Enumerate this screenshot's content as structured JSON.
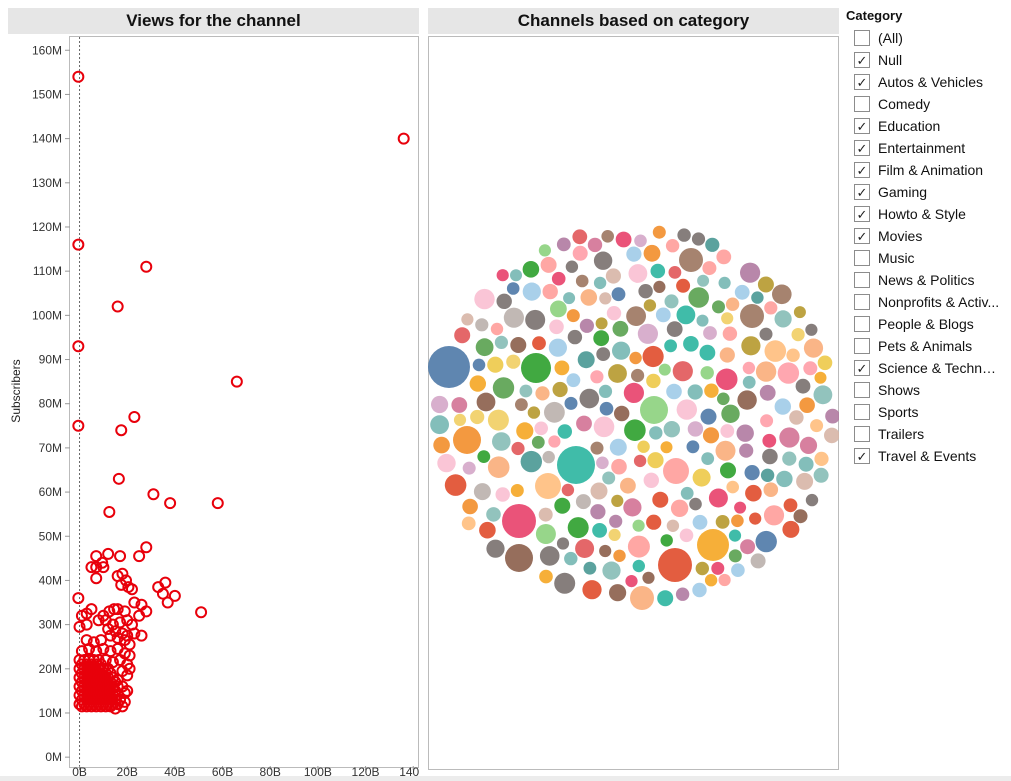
{
  "panels": {
    "scatter_title": "Views for the channel",
    "bubble_title": "Channels based on category"
  },
  "legend": {
    "title": "Category",
    "items": [
      {
        "label": "(All)",
        "checked": false
      },
      {
        "label": "Null",
        "checked": true
      },
      {
        "label": "Autos & Vehicles",
        "checked": true
      },
      {
        "label": "Comedy",
        "checked": false
      },
      {
        "label": "Education",
        "checked": true
      },
      {
        "label": "Entertainment",
        "checked": true
      },
      {
        "label": "Film & Animation",
        "checked": true
      },
      {
        "label": "Gaming",
        "checked": true
      },
      {
        "label": "Howto & Style",
        "checked": true
      },
      {
        "label": "Movies",
        "checked": true
      },
      {
        "label": "Music",
        "checked": false
      },
      {
        "label": "News & Politics",
        "checked": false
      },
      {
        "label": "Nonprofits & Activ...",
        "checked": false
      },
      {
        "label": "People & Blogs",
        "checked": false
      },
      {
        "label": "Pets & Animals",
        "checked": false
      },
      {
        "label": "Science & Techno...",
        "checked": true
      },
      {
        "label": "Shows",
        "checked": false
      },
      {
        "label": "Sports",
        "checked": false
      },
      {
        "label": "Trailers",
        "checked": false
      },
      {
        "label": "Travel & Events",
        "checked": true
      }
    ]
  },
  "chart_data": [
    {
      "type": "scatter",
      "title": "Views for the channel",
      "ylabel": "Subscribers",
      "xlabel": "",
      "x_unit": "B views",
      "y_unit": "M subscribers",
      "xlim": [
        -4,
        142
      ],
      "ylim": [
        -2,
        163
      ],
      "x_ticks": [
        "0B",
        "20B",
        "40B",
        "60B",
        "80B",
        "100B",
        "120B",
        "140B"
      ],
      "x_tick_values": [
        0,
        20,
        40,
        60,
        80,
        100,
        120,
        140
      ],
      "y_ticks": [
        "0M",
        "10M",
        "20M",
        "30M",
        "40M",
        "50M",
        "60M",
        "70M",
        "80M",
        "90M",
        "100M",
        "110M",
        "120M",
        "130M",
        "140M",
        "150M",
        "160M"
      ],
      "y_tick_values": [
        0,
        10,
        20,
        30,
        40,
        50,
        60,
        70,
        80,
        90,
        100,
        110,
        120,
        130,
        140,
        150,
        160
      ],
      "marker_color": "#e8000b",
      "reference_line_x": 0,
      "points": [
        [
          -0.5,
          154
        ],
        [
          136,
          140
        ],
        [
          -0.5,
          116
        ],
        [
          28,
          111
        ],
        [
          16,
          102
        ],
        [
          -0.5,
          93
        ],
        [
          66,
          85
        ],
        [
          23,
          77
        ],
        [
          -0.5,
          75
        ],
        [
          17.5,
          74
        ],
        [
          16.5,
          63
        ],
        [
          31,
          59.5
        ],
        [
          38,
          57.5
        ],
        [
          58,
          57.5
        ],
        [
          12.5,
          55.5
        ],
        [
          51,
          32.8
        ],
        [
          -0.5,
          36
        ],
        [
          28,
          47.5
        ],
        [
          25,
          45.5
        ],
        [
          7,
          45.5
        ],
        [
          9.5,
          44
        ],
        [
          12,
          46
        ],
        [
          17,
          45.5
        ],
        [
          5,
          43
        ],
        [
          7,
          43
        ],
        [
          10,
          43
        ],
        [
          16,
          41
        ],
        [
          18,
          41.5
        ],
        [
          19.5,
          40
        ],
        [
          7,
          40.5
        ],
        [
          17.5,
          39
        ],
        [
          20.5,
          38.5
        ],
        [
          22,
          38
        ],
        [
          33,
          38.5
        ],
        [
          36,
          39.5
        ],
        [
          35,
          37
        ],
        [
          37,
          35
        ],
        [
          40,
          36.5
        ],
        [
          23,
          35
        ],
        [
          26,
          34.5
        ],
        [
          28,
          33
        ],
        [
          14.5,
          33.5
        ],
        [
          16,
          33.5
        ],
        [
          12.5,
          33
        ],
        [
          10,
          32
        ],
        [
          19,
          33
        ],
        [
          5,
          33.5
        ],
        [
          3,
          32.5
        ],
        [
          1,
          32
        ],
        [
          0,
          29.5
        ],
        [
          3,
          30
        ],
        [
          8,
          31
        ],
        [
          11,
          31
        ],
        [
          14,
          30
        ],
        [
          17,
          30.5
        ],
        [
          20,
          31
        ],
        [
          22,
          30
        ],
        [
          25,
          32
        ],
        [
          12,
          29
        ],
        [
          15,
          28.5
        ],
        [
          18,
          28
        ],
        [
          20,
          27.5
        ],
        [
          23,
          28
        ],
        [
          26,
          27.5
        ],
        [
          13,
          27.5
        ],
        [
          16,
          27
        ],
        [
          19,
          26.5
        ],
        [
          21,
          25.5
        ],
        [
          9,
          26.5
        ],
        [
          6,
          26
        ],
        [
          3,
          26.5
        ],
        [
          1,
          24
        ],
        [
          4,
          24.5
        ],
        [
          7,
          24
        ],
        [
          10,
          24.5
        ],
        [
          13,
          24
        ],
        [
          16,
          24.5
        ],
        [
          19,
          23.5
        ],
        [
          21,
          23
        ],
        [
          11,
          22
        ],
        [
          14,
          21.5
        ],
        [
          17,
          22
        ],
        [
          20,
          21
        ],
        [
          21,
          20
        ],
        [
          18,
          19.5
        ],
        [
          20,
          18.5
        ],
        [
          16,
          17.5
        ],
        [
          18,
          16
        ],
        [
          19,
          14.5
        ],
        [
          17,
          13
        ],
        [
          18,
          11.5
        ],
        [
          15,
          11
        ],
        [
          13,
          11.5
        ],
        [
          19,
          12.5
        ],
        [
          20,
          15
        ],
        [
          0,
          22
        ],
        [
          0,
          20
        ],
        [
          0,
          18
        ],
        [
          0,
          16
        ],
        [
          0,
          14
        ],
        [
          0,
          12
        ],
        [
          1,
          21
        ],
        [
          1,
          19
        ],
        [
          1,
          17
        ],
        [
          1,
          15
        ],
        [
          1,
          13
        ],
        [
          1,
          11.5
        ],
        [
          2,
          22
        ],
        [
          2,
          20
        ],
        [
          2,
          18
        ],
        [
          2,
          16
        ],
        [
          2,
          14
        ],
        [
          2,
          12
        ],
        [
          3,
          21
        ],
        [
          3,
          19
        ],
        [
          3,
          17
        ],
        [
          3,
          15
        ],
        [
          3,
          13
        ],
        [
          3,
          11.5
        ],
        [
          4,
          22
        ],
        [
          4,
          20
        ],
        [
          4,
          18
        ],
        [
          4,
          16
        ],
        [
          4,
          14
        ],
        [
          4,
          12
        ],
        [
          5,
          21
        ],
        [
          5,
          19
        ],
        [
          5,
          17
        ],
        [
          5,
          15
        ],
        [
          5,
          13
        ],
        [
          5,
          11.5
        ],
        [
          6,
          22
        ],
        [
          6,
          20
        ],
        [
          6,
          18
        ],
        [
          6,
          16
        ],
        [
          6,
          14
        ],
        [
          6,
          12
        ],
        [
          7,
          21
        ],
        [
          7,
          19
        ],
        [
          7,
          17
        ],
        [
          7,
          15
        ],
        [
          7,
          13
        ],
        [
          7,
          11.5
        ],
        [
          8,
          22
        ],
        [
          8,
          20
        ],
        [
          8,
          18
        ],
        [
          8,
          16
        ],
        [
          8,
          14
        ],
        [
          8,
          12
        ],
        [
          9,
          21
        ],
        [
          9,
          19
        ],
        [
          9,
          17
        ],
        [
          9,
          15
        ],
        [
          9,
          13
        ],
        [
          9,
          11.5
        ],
        [
          10,
          20
        ],
        [
          10,
          18
        ],
        [
          10,
          16
        ],
        [
          10,
          14
        ],
        [
          10,
          12
        ],
        [
          11,
          19
        ],
        [
          11,
          17
        ],
        [
          11,
          15
        ],
        [
          11,
          13
        ],
        [
          11,
          11.5
        ],
        [
          12,
          20
        ],
        [
          12,
          18
        ],
        [
          12,
          16
        ],
        [
          12,
          14
        ],
        [
          12,
          12
        ],
        [
          13,
          19
        ],
        [
          13,
          17
        ],
        [
          13,
          15
        ],
        [
          13,
          13
        ],
        [
          14,
          18
        ],
        [
          14,
          16
        ],
        [
          14,
          14
        ],
        [
          14,
          12
        ],
        [
          15,
          17
        ],
        [
          15,
          15
        ],
        [
          15,
          13
        ],
        [
          16,
          16
        ],
        [
          16,
          14
        ],
        [
          16,
          12
        ]
      ]
    },
    {
      "type": "bubble",
      "title": "Channels based on category",
      "note": "packed bubble chart, one circle per channel, colored by category",
      "palette": [
        "#4e79a7",
        "#f28e2b",
        "#e15759",
        "#76b7b2",
        "#59a14f",
        "#edc948",
        "#b07aa1",
        "#ff9da7",
        "#9c755f",
        "#bab0ac",
        "#a0cbe8",
        "#ffbe7d",
        "#ff9d9a",
        "#8cd17d",
        "#b6992d",
        "#f1ce63",
        "#499894",
        "#86bcb6",
        "#d37295",
        "#fabfd2",
        "#d4a6c8",
        "#79706e",
        "#d7b5a6",
        "#2ca02c",
        "#e04b2b",
        "#f5a623",
        "#2bb5a0",
        "#e8406a",
        "#8b5e4a",
        "#f9ad7a"
      ],
      "highlights": [
        {
          "label": "largest-blue",
          "color": "#4e79a7"
        },
        {
          "label": "large-teal",
          "color": "#2bb5a0"
        },
        {
          "label": "large-red",
          "color": "#e04b2b"
        }
      ]
    }
  ]
}
